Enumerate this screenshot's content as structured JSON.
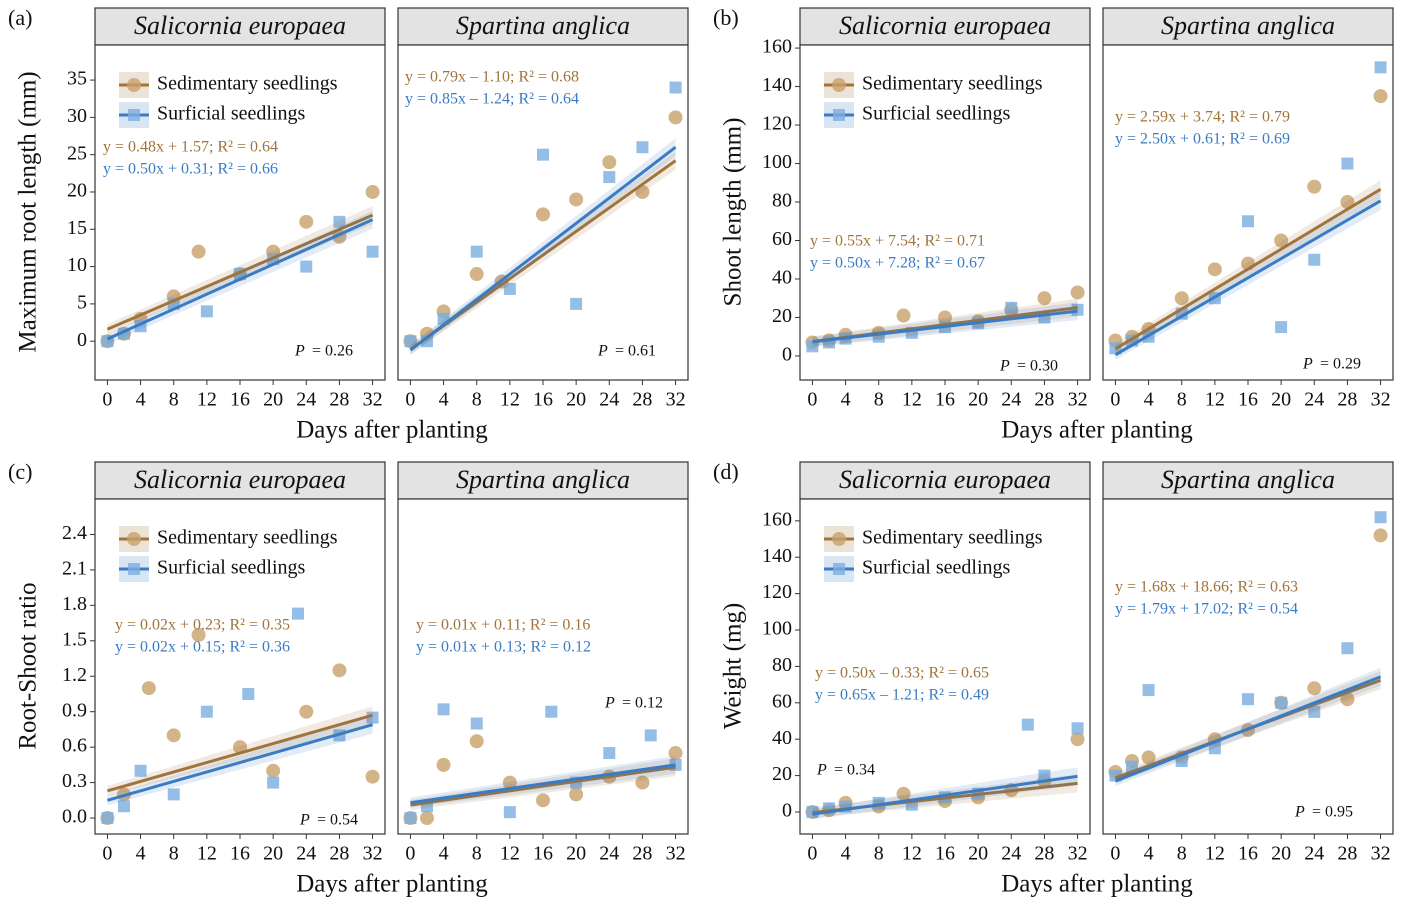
{
  "chart_data": [
    {
      "type": "scatter",
      "label": "(a)",
      "ylabel": "Maximum root length (mm)",
      "xlabel": "Days after planting",
      "xlim": [
        -1.5,
        33.5
      ],
      "xticks": [
        0,
        4,
        8,
        12,
        16,
        20,
        24,
        28,
        32
      ],
      "ylim": [
        -5.2,
        39.7
      ],
      "yticks": [
        0,
        5,
        10,
        15,
        20,
        25,
        30,
        35
      ],
      "panels": [
        {
          "title": "Salicornia europaea",
          "p_label": "P",
          "p_value": "= 0.26",
          "series": [
            {
              "name": "Sedimentary seedlings",
              "color": "#a0743a",
              "point_color": "#c8a06a",
              "x": [
                0,
                2,
                4,
                8,
                11,
                16,
                20,
                24,
                28,
                32
              ],
              "values": [
                0,
                1,
                3,
                6,
                12,
                9,
                12,
                16,
                14,
                20
              ],
              "fit": {
                "x": [
                  0,
                  32
                ],
                "values": [
                  1.6,
                  16.9
                ]
              },
              "equation": "y = 0.48x + 1.57; R² = 0.64"
            },
            {
              "name": "Surficial seedlings",
              "color": "#3a7cc4",
              "point_color": "#7aaee0",
              "x": [
                0,
                2,
                4,
                8,
                12,
                16,
                20,
                24,
                28,
                32
              ],
              "values": [
                0,
                1,
                2,
                5,
                4,
                9,
                11,
                10,
                16,
                12
              ],
              "fit": {
                "x": [
                  0,
                  32
                ],
                "values": [
                  0.3,
                  16.3
                ]
              },
              "equation": "y = 0.50x + 0.31; R² = 0.66"
            }
          ]
        },
        {
          "title": "Spartina anglica",
          "p_label": "P",
          "p_value": "= 0.61",
          "series": [
            {
              "name": "Sedimentary seedlings",
              "color": "#a0743a",
              "point_color": "#c8a06a",
              "x": [
                0,
                2,
                4,
                8,
                11,
                16,
                20,
                24,
                28,
                32
              ],
              "values": [
                0,
                1,
                4,
                9,
                8,
                17,
                19,
                24,
                20,
                30
              ],
              "fit": {
                "x": [
                  0,
                  32
                ],
                "values": [
                  -1.1,
                  24.2
                ]
              },
              "equation": "y = 0.79x – 1.10; R² = 0.68"
            },
            {
              "name": "Surficial seedlings",
              "color": "#3a7cc4",
              "point_color": "#7aaee0",
              "x": [
                0,
                2,
                4,
                8,
                12,
                16,
                20,
                24,
                28,
                32
              ],
              "values": [
                0,
                0,
                3,
                12,
                7,
                25,
                5,
                22,
                26,
                34
              ],
              "fit": {
                "x": [
                  0,
                  32
                ],
                "values": [
                  -1.2,
                  26
                ]
              },
              "equation": "y = 0.85x – 1.24; R² = 0.64"
            }
          ]
        }
      ]
    },
    {
      "type": "scatter",
      "label": "(b)",
      "ylabel": "Shoot length (mm)",
      "xlabel": "Days after planting",
      "xlim": [
        -1.5,
        33.5
      ],
      "xticks": [
        0,
        4,
        8,
        12,
        16,
        20,
        24,
        28,
        32
      ],
      "ylim": [
        -12.5,
        161.6
      ],
      "yticks": [
        0,
        20,
        40,
        60,
        80,
        100,
        120,
        140,
        160
      ],
      "panels": [
        {
          "title": "Salicornia europaea",
          "p_label": "P",
          "p_value": "= 0.30",
          "series": [
            {
              "name": "Sedimentary seedlings",
              "color": "#a0743a",
              "point_color": "#c8a06a",
              "x": [
                0,
                2,
                4,
                8,
                11,
                16,
                20,
                24,
                28,
                32
              ],
              "values": [
                7,
                8,
                11,
                12,
                21,
                20,
                18,
                24,
                30,
                33
              ],
              "fit": {
                "x": [
                  0,
                  32
                ],
                "values": [
                  7.5,
                  25.1
                ]
              },
              "equation": "y = 0.55x + 7.54; R² = 0.71"
            },
            {
              "name": "Surficial seedlings",
              "color": "#3a7cc4",
              "point_color": "#7aaee0",
              "x": [
                0,
                2,
                4,
                8,
                12,
                16,
                20,
                24,
                28,
                32
              ],
              "values": [
                5,
                7,
                9,
                10,
                12,
                15,
                17,
                25,
                20,
                24
              ],
              "fit": {
                "x": [
                  0,
                  32
                ],
                "values": [
                  7.3,
                  23.3
                ]
              },
              "equation": "y = 0.50x + 7.28; R² = 0.67"
            }
          ]
        },
        {
          "title": "Spartina anglica",
          "p_label": "P",
          "p_value": "= 0.29",
          "series": [
            {
              "name": "Sedimentary seedlings",
              "color": "#a0743a",
              "point_color": "#c8a06a",
              "x": [
                0,
                2,
                4,
                8,
                12,
                16,
                20,
                24,
                28,
                32
              ],
              "values": [
                8,
                10,
                14,
                30,
                45,
                48,
                60,
                88,
                80,
                135
              ],
              "fit": {
                "x": [
                  0,
                  32
                ],
                "values": [
                  3.7,
                  86.6
                ]
              },
              "equation": "y = 2.59x + 3.74; R² = 0.79"
            },
            {
              "name": "Surficial seedlings",
              "color": "#3a7cc4",
              "point_color": "#7aaee0",
              "x": [
                0,
                2,
                4,
                8,
                12,
                16,
                20,
                24,
                28,
                32
              ],
              "values": [
                4,
                8,
                10,
                22,
                30,
                70,
                15,
                50,
                100,
                150
              ],
              "fit": {
                "x": [
                  0,
                  32
                ],
                "values": [
                  0.6,
                  80.6
                ]
              },
              "equation": "y = 2.50x + 0.61; R² = 0.69"
            }
          ]
        }
      ]
    },
    {
      "type": "scatter",
      "label": "(c)",
      "ylabel": "Root-Shoot ratio",
      "xlabel": "Days after planting",
      "xlim": [
        -1.5,
        33.5
      ],
      "xticks": [
        0,
        4,
        8,
        12,
        16,
        20,
        24,
        28,
        32
      ],
      "ylim": [
        -0.135,
        2.7
      ],
      "yticks": [
        {
          "value": 0,
          "label": "0.0"
        },
        0.3,
        0.6,
        0.9,
        1.2,
        1.5,
        1.8,
        2.1,
        2.4
      ],
      "panels": [
        {
          "title": "Salicornia europaea",
          "p_label": "P",
          "p_value": "= 0.54",
          "series": [
            {
              "name": "Sedimentary seedlings",
              "color": "#a0743a",
              "point_color": "#c8a06a",
              "x": [
                0,
                2,
                5,
                8,
                11,
                16,
                20,
                24,
                28,
                32
              ],
              "values": [
                0,
                0.2,
                1.1,
                0.7,
                1.55,
                0.6,
                0.4,
                0.9,
                1.25,
                0.35
              ],
              "fit": {
                "x": [
                  0,
                  32
                ],
                "values": [
                  0.23,
                  0.87
                ]
              },
              "equation": "y = 0.02x + 0.23; R² = 0.35"
            },
            {
              "name": "Surficial seedlings",
              "color": "#3a7cc4",
              "point_color": "#7aaee0",
              "x": [
                0,
                2,
                4,
                8,
                12,
                17,
                20,
                23,
                28,
                32
              ],
              "values": [
                0,
                0.1,
                0.4,
                0.2,
                0.9,
                1.05,
                0.3,
                1.73,
                0.7,
                0.85
              ],
              "fit": {
                "x": [
                  0,
                  32
                ],
                "values": [
                  0.15,
                  0.79
                ]
              },
              "equation": "y = 0.02x + 0.15; R² = 0.36"
            }
          ]
        },
        {
          "title": "Spartina anglica",
          "p_label": "P",
          "p_value": "= 0.12",
          "series": [
            {
              "name": "Sedimentary seedlings",
              "color": "#a0743a",
              "point_color": "#c8a06a",
              "x": [
                0,
                2,
                4,
                8,
                12,
                16,
                20,
                24,
                28,
                32
              ],
              "values": [
                0,
                0,
                0.45,
                0.65,
                0.3,
                0.15,
                0.2,
                0.35,
                0.3,
                0.55
              ],
              "fit": {
                "x": [
                  0,
                  32
                ],
                "values": [
                  0.11,
                  0.43
                ]
              },
              "equation": "y = 0.01x + 0.11; R² = 0.16"
            },
            {
              "name": "Surficial seedlings",
              "color": "#3a7cc4",
              "point_color": "#7aaee0",
              "x": [
                0,
                2,
                4,
                8,
                12,
                17,
                20,
                24,
                29,
                32
              ],
              "values": [
                0,
                0.1,
                0.92,
                0.8,
                0.05,
                0.9,
                0.3,
                0.55,
                0.7,
                0.45
              ],
              "fit": {
                "x": [
                  0,
                  32
                ],
                "values": [
                  0.13,
                  0.45
                ]
              },
              "equation": "y = 0.01x + 0.13; R² = 0.12"
            }
          ]
        }
      ]
    },
    {
      "type": "scatter",
      "label": "(d)",
      "ylabel": "Weight (mg)",
      "xlabel": "Days after planting",
      "xlim": [
        -1.5,
        33.5
      ],
      "xticks": [
        0,
        4,
        8,
        12,
        16,
        20,
        24,
        28,
        32
      ],
      "ylim": [
        -12.1,
        172
      ],
      "yticks": [
        0,
        20,
        40,
        60,
        80,
        100,
        120,
        140,
        160
      ],
      "panels": [
        {
          "title": "Salicornia europaea",
          "p_label": "P",
          "p_value": "= 0.34",
          "series": [
            {
              "name": "Sedimentary seedlings",
              "color": "#a0743a",
              "point_color": "#c8a06a",
              "x": [
                0,
                2,
                4,
                8,
                11,
                16,
                20,
                24,
                28,
                32
              ],
              "values": [
                0,
                1,
                5,
                3,
                10,
                6,
                8,
                12,
                17,
                40
              ],
              "fit": {
                "x": [
                  0,
                  32
                ],
                "values": [
                  -0.33,
                  15.7
                ]
              },
              "equation": "y = 0.50x – 0.33; R² = 0.65"
            },
            {
              "name": "Surficial seedlings",
              "color": "#3a7cc4",
              "point_color": "#7aaee0",
              "x": [
                0,
                2,
                4,
                8,
                12,
                16,
                20,
                26,
                28,
                32
              ],
              "values": [
                0,
                2,
                3,
                5,
                4,
                8,
                10,
                48,
                20,
                46
              ],
              "fit": {
                "x": [
                  0,
                  32
                ],
                "values": [
                  -1.21,
                  19.6
                ]
              },
              "equation": "y = 0.65x – 1.21; R² = 0.49"
            }
          ]
        },
        {
          "title": "Spartina anglica",
          "p_label": "P",
          "p_value": "= 0.95",
          "series": [
            {
              "name": "Sedimentary seedlings",
              "color": "#a0743a",
              "point_color": "#c8a06a",
              "x": [
                0,
                2,
                4,
                8,
                12,
                16,
                20,
                24,
                28,
                32
              ],
              "values": [
                22,
                28,
                30,
                30,
                40,
                45,
                60,
                68,
                62,
                152
              ],
              "fit": {
                "x": [
                  0,
                  32
                ],
                "values": [
                  18.7,
                  72.4
                ]
              },
              "equation": "y = 1.68x + 18.66; R² = 0.63"
            },
            {
              "name": "Surficial seedlings",
              "color": "#3a7cc4",
              "point_color": "#7aaee0",
              "x": [
                0,
                2,
                4,
                8,
                12,
                16,
                20,
                24,
                28,
                32
              ],
              "values": [
                20,
                25,
                67,
                28,
                35,
                62,
                60,
                55,
                90,
                162
              ],
              "fit": {
                "x": [
                  0,
                  32
                ],
                "values": [
                  17,
                  74.3
                ]
              },
              "equation": "y = 1.79x + 17.02; R² = 0.54"
            }
          ]
        }
      ]
    }
  ]
}
